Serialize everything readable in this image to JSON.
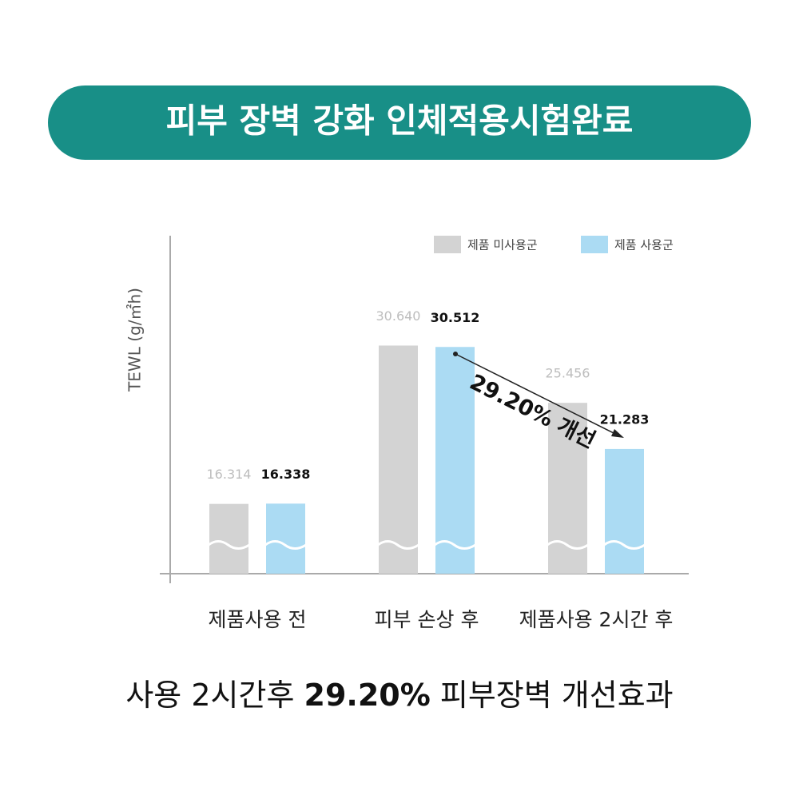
{
  "header": {
    "title": "피부 장벽 강화 인체적용시험완료"
  },
  "chart_data": {
    "type": "bar",
    "ylabel": "TEWL (g/㎡h)",
    "categories": [
      "제품사용 전",
      "피부 손상 후",
      "제품사용 2시간 후"
    ],
    "series": [
      {
        "name": "제품 미사용군",
        "color": "#d3d3d3",
        "values": [
          16.314,
          30.64,
          25.456
        ],
        "value_labels": [
          "16.314",
          "30.640",
          "25.456"
        ]
      },
      {
        "name": "제품 사용군",
        "color": "#abdbf3",
        "values": [
          16.338,
          30.512,
          21.283
        ],
        "value_labels": [
          "16.338",
          "30.512",
          "21.283"
        ]
      }
    ],
    "ylim": [
      10,
      40
    ],
    "axis_break": true,
    "legend": "top-right",
    "annotation": "29.20% 개선"
  },
  "footer": {
    "parts": [
      "사용 2시간후",
      "29.20%",
      "피부장벽 개선효과"
    ]
  }
}
